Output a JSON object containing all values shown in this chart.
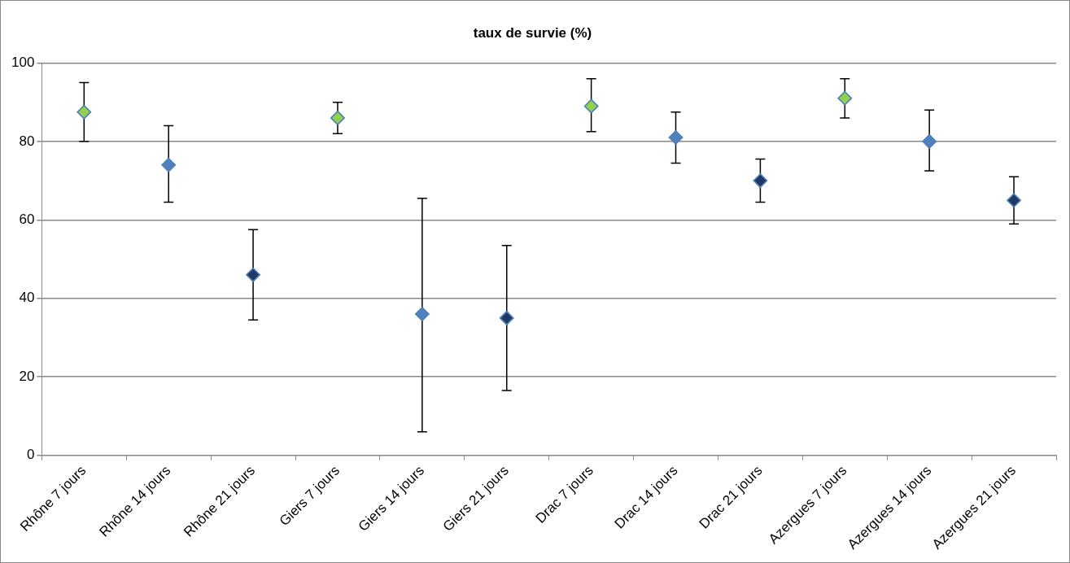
{
  "chart_data": {
    "type": "scatter",
    "title": "taux de survie (%)",
    "categories": [
      "Rhône 7 jours",
      "Rhône 14 jours",
      "Rhône 21 jours",
      "Giers 7 jours",
      "Giers 14 jours",
      "Giers 21 jours",
      "Drac 7 jours",
      "Drac 14 jours",
      "Drac 21 jours",
      "Azergues 7 jours",
      "Azergues 14 jours",
      "Azergues 21 jours"
    ],
    "values": [
      87.5,
      74,
      46,
      86,
      36,
      35,
      89,
      81,
      70,
      91,
      80,
      65
    ],
    "colors": [
      "#92d050",
      "#4f81bd",
      "#1f3864",
      "#92d050",
      "#4f81bd",
      "#1f3864",
      "#92d050",
      "#4f81bd",
      "#1f3864",
      "#92d050",
      "#4f81bd",
      "#1f3864"
    ],
    "errors": [
      [
        80,
        95
      ],
      [
        64.5,
        84
      ],
      [
        34.5,
        57.5
      ],
      [
        82,
        90
      ],
      [
        6,
        65.5
      ],
      [
        16.5,
        53.5
      ],
      [
        82.5,
        96
      ],
      [
        74.5,
        87.5
      ],
      [
        64.5,
        75.5
      ],
      [
        86,
        96
      ],
      [
        72.5,
        88
      ],
      [
        59,
        71
      ]
    ],
    "ylim": [
      0,
      100
    ],
    "yticks": [
      0,
      20,
      40,
      60,
      80,
      100
    ],
    "grid": "y",
    "legend": false,
    "marker": "diamond"
  }
}
